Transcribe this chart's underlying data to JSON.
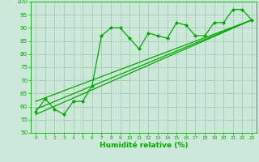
{
  "xlabel": "Humidité relative (%)",
  "xlim": [
    -0.5,
    23.5
  ],
  "ylim": [
    50,
    100
  ],
  "xticks": [
    0,
    1,
    2,
    3,
    4,
    5,
    6,
    7,
    8,
    9,
    10,
    11,
    12,
    13,
    14,
    15,
    16,
    17,
    18,
    19,
    20,
    21,
    22,
    23
  ],
  "yticks": [
    50,
    55,
    60,
    65,
    70,
    75,
    80,
    85,
    90,
    95,
    100
  ],
  "background_color": "#cce8d8",
  "grid_color": "#a8ccb8",
  "line_color": "#00aa00",
  "zigzag_x": [
    0,
    1,
    2,
    3,
    4,
    5,
    6,
    7,
    8,
    9,
    10,
    11,
    12,
    13,
    14,
    15,
    16,
    17,
    18,
    19,
    20,
    21,
    22,
    23
  ],
  "zigzag_y": [
    58,
    63,
    59,
    57,
    62,
    62,
    68,
    87,
    90,
    90,
    86,
    82,
    88,
    87,
    86,
    92,
    91,
    87,
    87,
    92,
    92,
    97,
    97,
    93
  ],
  "line1_x": [
    0,
    23
  ],
  "line1_y": [
    59,
    93
  ],
  "line2_x": [
    0,
    23
  ],
  "line2_y": [
    62,
    93
  ],
  "line3_x": [
    0,
    23
  ],
  "line3_y": [
    57,
    93
  ]
}
